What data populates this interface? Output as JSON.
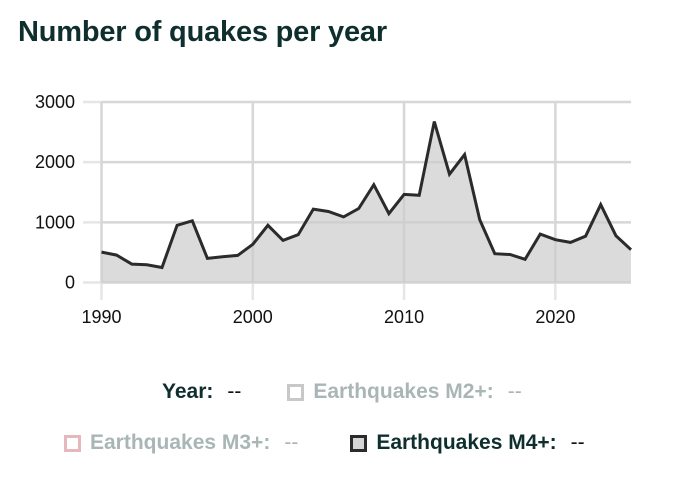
{
  "title": "Number of quakes per year",
  "colors": {
    "title": "#0f2e2e",
    "line": "#2b2b2b",
    "area": "#d9d9d9",
    "grid": "#e6e6e6",
    "legend_muted_text": "#a9b6b5",
    "m2_swatch": "#c8c8c8",
    "m3_swatch": "#e4b8bd",
    "m4_swatch_border": "#2b2b2b",
    "m4_swatch_fill": "#d6d6d6"
  },
  "legend": {
    "year": {
      "label": "Year:",
      "value": "--"
    },
    "items": [
      {
        "label": "Earthquakes M2+:",
        "value": "--",
        "active": false
      },
      {
        "label": "Earthquakes M3+:",
        "value": "--",
        "active": false
      },
      {
        "label": "Earthquakes M4+:",
        "value": "--",
        "active": true
      }
    ]
  },
  "chart_data": {
    "type": "area",
    "title": "Number of quakes per year",
    "xlabel": "",
    "ylabel": "",
    "x": [
      1990,
      1991,
      1992,
      1993,
      1994,
      1995,
      1996,
      1997,
      1998,
      1999,
      2000,
      2001,
      2002,
      2003,
      2004,
      2005,
      2006,
      2007,
      2008,
      2009,
      2010,
      2011,
      2012,
      2013,
      2014,
      2015,
      2016,
      2017,
      2018,
      2019,
      2020,
      2021,
      2022,
      2023,
      2024,
      2025
    ],
    "series": [
      {
        "name": "Earthquakes M4+",
        "values": [
          505,
          455,
          305,
          295,
          250,
          950,
          1025,
          400,
          428,
          450,
          635,
          950,
          700,
          795,
          1220,
          1180,
          1090,
          1230,
          1625,
          1145,
          1465,
          1450,
          2675,
          1800,
          2125,
          1045,
          478,
          465,
          385,
          805,
          712,
          667,
          770,
          1295,
          778,
          545
        ]
      }
    ],
    "xlim": [
      1990,
      2025
    ],
    "ylim": [
      0,
      3000
    ],
    "xticks": [
      1990,
      2000,
      2010,
      2020
    ],
    "yticks": [
      0,
      1000,
      2000,
      3000
    ],
    "grid": true,
    "legend_position": "bottom"
  }
}
